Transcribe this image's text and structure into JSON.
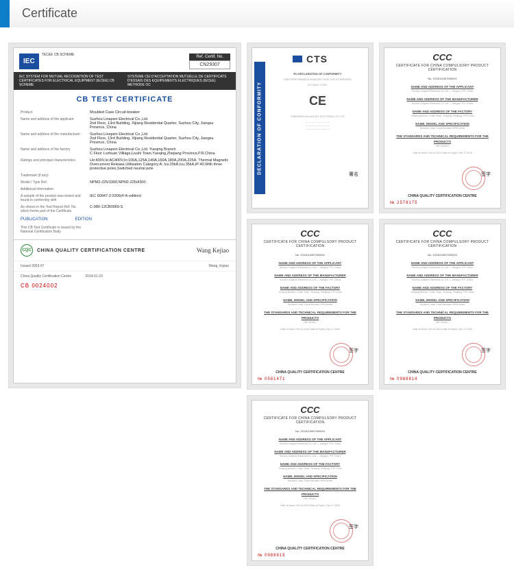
{
  "header": {
    "title": "Certificate",
    "accent_color": "#0b7dc9"
  },
  "cb": {
    "iec_label": "IEC",
    "iec_sub": "TECEE CB SCHEME",
    "ref_label": "Ref. Certif. No.",
    "ref_no": "CN29307",
    "band_left": "IEC SYSTEM FOR MUTUAL RECOGNITION OF TEST CERTIFICATES FOR ELECTRICAL EQUIPMENT (IECEE) CB SCHEME",
    "band_right": "SYSTEME CEI D'ACCEPTATION MUTUELLE DE CERTIFICATS D'ESSAIS DES EQUIPEMENTS ELECTRIQUES (IECEE) METHODE OC",
    "title": "CB TEST CERTIFICATE",
    "fields": [
      {
        "l": "Product",
        "v": "Moulded Case Circuit-breaker"
      },
      {
        "l": "Name and address of the applicant",
        "v": "Suzhou Linapsin Electrical Co.,Ltd.\n2nd Floor, 13rd Building, Xijiang Residential Quarter, Suzhou City, Jiangsu Province, China"
      },
      {
        "l": "Name and address of the manufacturer",
        "v": "Suzhou Linapsin Electrical Co.,Ltd.\n2nd Floor, 13rd Building, Xijiang Residential Quarter, Suzhou City, Jiangsu Province, China"
      },
      {
        "l": "Name and address of the factory",
        "v": "Suzhou Linapsin Electrical Co.,Ltd. Yueqing Branch\nC Floor Lvzhuan Villiage,Liushi Town,Yueqing,Zhejiang Province,P.R.China"
      },
      {
        "l": "Ratings and principal characteristics",
        "v": "Ue:400V,Ie:AC400V,In:100A,125A,140A,160A,180A,200A,225A. Thermal Magnetic Overcurrent Release,Utilisation Category:A; Ics:25kA,Icu:35kA,IP:40;With three protective poles,Switched neutral pole"
      },
      {
        "l": "Trademark (if any)",
        "v": ""
      },
      {
        "l": "Model / Type Ref.",
        "v": "NPM2-225/3300;NPM2-225/4300"
      },
      {
        "l": "Additional information",
        "v": ""
      },
      {
        "l": "A sample of the product was tested and found in conformity with",
        "v": "IEC 60947-2:2006(4 th edition)"
      },
      {
        "l": "As shown in the Test Report Ref. No. which forms part of the Certificate",
        "v": "C-080-12CB0069-S"
      }
    ],
    "pub": "PUBLICATION",
    "ed": "EDITION",
    "note": "This CB Test Certificate is issued by the National Certification Body",
    "cqc": "CHINA QUALITY CERTIFICATION CENTRE",
    "sig_name": "Wang, Kejiao",
    "issued": "Issued  2003-07",
    "date": "2014-01-23",
    "cb_no": "CB   0024002"
  },
  "cts": {
    "brand": "CTS",
    "side": "DECLARATION OF CONFORMITY",
    "heading": "EU DECLARATION OF CONFORMITY",
    "ce": "CE",
    "lines": [
      "HIGH PERFORMANCE MOULDED CASE CIRCUIT BREAKER",
      "IEC 60947-2:2007",
      "SHENZHEN WULIAN KEY ELECTRICAL CO.,LTD"
    ]
  },
  "ccc": {
    "logo": "CCC",
    "title": "CERTIFICATE FOR CHINA COMPULSORY PRODUCT CERTIFICATION",
    "cert_no_label": "No.",
    "sections": [
      {
        "h": "NAME AND ADDRESS OF THE APPLICANT",
        "b": "Suzhou Linapsin Electrical Co.,Ltd — Jiangsu, P.R. China"
      },
      {
        "h": "NAME AND ADDRESS OF THE MANUFACTURER",
        "b": "Suzhou Linapsin Electrical Co.,Ltd — Jiangsu, P.R. China"
      },
      {
        "h": "NAME AND ADDRESS OF THE FACTORY",
        "b": "Yueqing Branch, Liushi Town, Yueqing, Zhejiang, P.R.China"
      },
      {
        "h": "NAME, MODEL AND SPECIFICATION",
        "b": "Moulded Case Circuit Breaker NPM series"
      },
      {
        "h": "THE STANDARDS AND TECHNICAL REQUIREMENTS FOR THE PRODUCTS",
        "b": "GB 14048.2"
      }
    ],
    "date_line": "Date of issue: Feb.14,2014    Date of Expiry: Dec.17,2018",
    "footer": "CHINA QUALITY CERTIFICATION CENTRE",
    "items": [
      {
        "no": "2013011907000001",
        "stamp_no": "2578175"
      },
      {
        "no": "2013010907000002",
        "stamp_no": "0581471"
      },
      {
        "no": "2013010907000003",
        "stamp_no": "0988814"
      },
      {
        "no": "2013010907000004",
        "stamp_no": "0988815"
      }
    ]
  },
  "colors": {
    "iec_blue": "#1a4fa0",
    "accent": "#0b7dc9",
    "stamp": "#c83232",
    "cqc_green": "#2a8a3a"
  }
}
